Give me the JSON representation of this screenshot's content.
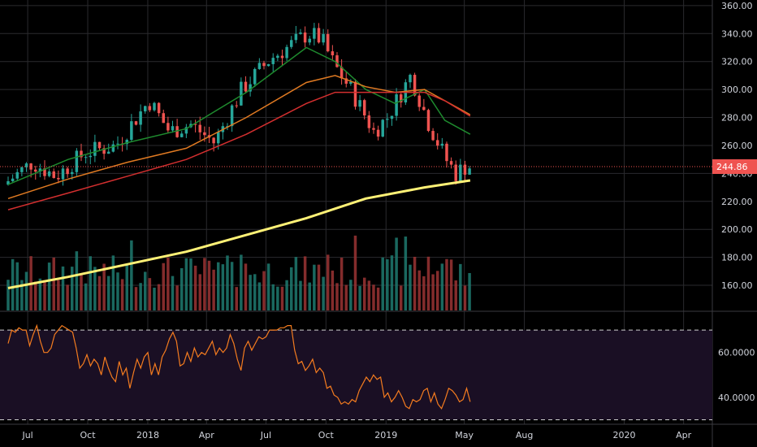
{
  "colors": {
    "background": "#000000",
    "grid": "#2a2a2e",
    "axis_text": "#d1d4dc",
    "up": "#26a69a",
    "down": "#ef5350",
    "volume_up": "#1e7a70",
    "volume_down": "#9b3434",
    "ma_20": "#1e8a2e",
    "ma_50": "#e07a22",
    "ma_100": "#d32f2f",
    "ma_200": "#fff176",
    "rsi_line": "#f57c1f",
    "rsi_band": "#1a0f24",
    "last_price": "#ef5350"
  },
  "chart_data": [
    {
      "type": "candlestick",
      "panel": "price",
      "price_axis": {
        "range": [
          142,
          364
        ],
        "ticks": [
          "160.00",
          "180.00",
          "200.00",
          "220.00",
          "240.00",
          "260.00",
          "280.00",
          "300.00",
          "320.00",
          "340.00",
          "360.00"
        ]
      },
      "time_axis": {
        "labels": [
          "Jul",
          "Oct",
          "2018",
          "Apr",
          "Jul",
          "Oct",
          "2019",
          "May",
          "Aug",
          "2020",
          "Apr"
        ]
      },
      "last_price_label": "244.86",
      "moving_averages": [
        {
          "key": "ma_20",
          "x": [
            "2017-06-01",
            "2017-09-01",
            "2017-12-01",
            "2018-03-01",
            "2018-06-01",
            "2018-09-01",
            "2018-10-15",
            "2018-12-01",
            "2019-01-15",
            "2019-03-01",
            "2019-04-01",
            "2019-05-10"
          ],
          "y": [
            232,
            250,
            262,
            272,
            298,
            330,
            320,
            300,
            290,
            300,
            278,
            268
          ]
        },
        {
          "key": "ma_50",
          "x": [
            "2017-06-01",
            "2017-09-01",
            "2017-12-01",
            "2018-03-01",
            "2018-06-01",
            "2018-09-01",
            "2018-10-15",
            "2018-12-01",
            "2019-01-15",
            "2019-03-01",
            "2019-04-01",
            "2019-05-10"
          ],
          "y": [
            222,
            236,
            248,
            258,
            280,
            305,
            310,
            302,
            298,
            300,
            292,
            282
          ]
        },
        {
          "key": "ma_100",
          "x": [
            "2017-06-01",
            "2017-09-01",
            "2017-12-01",
            "2018-03-01",
            "2018-06-01",
            "2018-09-01",
            "2018-10-15",
            "2018-12-01",
            "2019-01-15",
            "2019-03-01",
            "2019-04-01",
            "2019-05-10"
          ],
          "y": [
            214,
            226,
            238,
            250,
            268,
            290,
            298,
            298,
            298,
            298,
            292,
            281
          ]
        },
        {
          "key": "ma_200",
          "x": [
            "2017-06-01",
            "2017-09-01",
            "2017-12-01",
            "2018-03-01",
            "2018-06-01",
            "2018-09-01",
            "2018-12-01",
            "2019-03-01",
            "2019-05-10"
          ],
          "y": [
            158,
            166,
            175,
            184,
            196,
            208,
            222,
            230,
            235
          ]
        }
      ]
    },
    {
      "type": "line",
      "panel": "rsi",
      "rsi_axis": {
        "range": [
          28,
          78
        ],
        "ticks": [
          "60.0000",
          "40.0000"
        ],
        "band": [
          30,
          70
        ]
      },
      "series_y_points": [
        64,
        70,
        69,
        71,
        70,
        70,
        63,
        68,
        72,
        65,
        60,
        60,
        62,
        68,
        70,
        72,
        71,
        70,
        69,
        62,
        53,
        55,
        59,
        54,
        57,
        55,
        50,
        58,
        53,
        49,
        47,
        56,
        50,
        53,
        44,
        51,
        57,
        53,
        58,
        60,
        50,
        55,
        50,
        58,
        61,
        66,
        69,
        65,
        54,
        55,
        60,
        56,
        62,
        58,
        60,
        59,
        62,
        65,
        59,
        62,
        60,
        62,
        68,
        64,
        57,
        52,
        62,
        65,
        61,
        64,
        67,
        66,
        67,
        70,
        70,
        70,
        71,
        71,
        72,
        72,
        61,
        55,
        56,
        52,
        54,
        57,
        51,
        53,
        51,
        44,
        45,
        41,
        40,
        37,
        38,
        37,
        39,
        38,
        43,
        46,
        49,
        47,
        50,
        48,
        49,
        40,
        42,
        38,
        40,
        43,
        40,
        36,
        35,
        39,
        38,
        39,
        43,
        44,
        38,
        42,
        37,
        35,
        39,
        44,
        43,
        41,
        38,
        39,
        44,
        38
      ]
    }
  ]
}
